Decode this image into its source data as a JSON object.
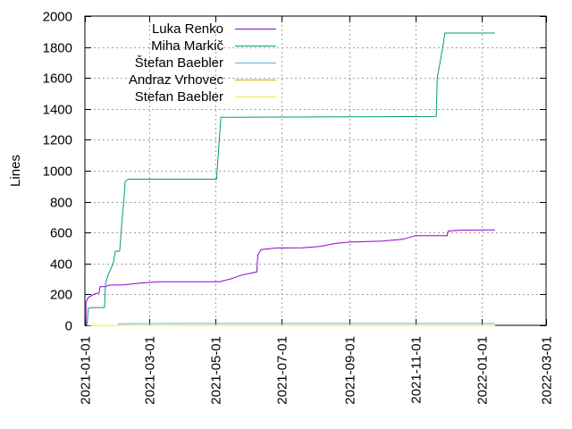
{
  "chart_data": {
    "type": "line",
    "title": "",
    "xlabel": "",
    "ylabel": "Lines",
    "x_type": "date",
    "xlim": [
      "2021-01-01",
      "2022-03-01"
    ],
    "ylim": [
      0,
      2000
    ],
    "x_ticks": [
      "2021-01-01",
      "2021-03-01",
      "2021-05-01",
      "2021-07-01",
      "2021-09-01",
      "2021-11-01",
      "2022-01-01",
      "2022-03-01"
    ],
    "y_ticks": [
      0,
      200,
      400,
      600,
      800,
      1000,
      1200,
      1400,
      1600,
      1800,
      2000
    ],
    "grid": true,
    "legend_position": "top-left",
    "series": [
      {
        "name": "Luka Renko",
        "color": "#9400d3",
        "points": [
          [
            "2021-01-02",
            0
          ],
          [
            "2021-01-02",
            150
          ],
          [
            "2021-01-04",
            180
          ],
          [
            "2021-01-09",
            200
          ],
          [
            "2021-01-14",
            210
          ],
          [
            "2021-01-15",
            250
          ],
          [
            "2021-01-20",
            250
          ],
          [
            "2021-01-23",
            260
          ],
          [
            "2021-02-05",
            262
          ],
          [
            "2021-02-20",
            272
          ],
          [
            "2021-03-10",
            282
          ],
          [
            "2021-05-05",
            282
          ],
          [
            "2021-05-15",
            300
          ],
          [
            "2021-05-25",
            325
          ],
          [
            "2021-06-08",
            345
          ],
          [
            "2021-06-09",
            455
          ],
          [
            "2021-06-12",
            490
          ],
          [
            "2021-06-26",
            500
          ],
          [
            "2021-07-20",
            502
          ],
          [
            "2021-08-05",
            510
          ],
          [
            "2021-08-20",
            530
          ],
          [
            "2021-09-01",
            538
          ],
          [
            "2021-10-01",
            545
          ],
          [
            "2021-10-20",
            556
          ],
          [
            "2021-11-01",
            580
          ],
          [
            "2021-11-30",
            580
          ],
          [
            "2021-12-01",
            610
          ],
          [
            "2021-12-12",
            615
          ],
          [
            "2022-01-01",
            617
          ],
          [
            "2022-01-13",
            617
          ]
        ]
      },
      {
        "name": "Miha Markič",
        "color": "#009e73",
        "points": [
          [
            "2021-01-03",
            0
          ],
          [
            "2021-01-04",
            110
          ],
          [
            "2021-01-08",
            115
          ],
          [
            "2021-01-19",
            115
          ],
          [
            "2021-01-20",
            270
          ],
          [
            "2021-01-22",
            320
          ],
          [
            "2021-01-27",
            400
          ],
          [
            "2021-01-29",
            480
          ],
          [
            "2021-02-02",
            480
          ],
          [
            "2021-02-04",
            670
          ],
          [
            "2021-02-06",
            820
          ],
          [
            "2021-02-07",
            930
          ],
          [
            "2021-02-10",
            945
          ],
          [
            "2021-05-02",
            945
          ],
          [
            "2021-05-06",
            1345
          ],
          [
            "2021-11-20",
            1350
          ],
          [
            "2021-11-21",
            1600
          ],
          [
            "2021-11-26",
            1800
          ],
          [
            "2021-11-28",
            1890
          ],
          [
            "2022-01-13",
            1890
          ]
        ]
      },
      {
        "name": "Štefan Baebler",
        "color": "#56b4e9",
        "points": [
          [
            "2021-01-03",
            0
          ],
          [
            "2021-02-01",
            0
          ],
          [
            "2021-02-01",
            10
          ],
          [
            "2021-04-01",
            12
          ],
          [
            "2022-01-13",
            12
          ]
        ]
      },
      {
        "name": "Andraz Vrhovec",
        "color": "#e69f00",
        "points": [
          [
            "2021-01-03",
            0
          ],
          [
            "2022-01-13",
            0
          ]
        ]
      },
      {
        "name": "Stefan Baebler",
        "color": "#f0e442",
        "points": [
          [
            "2021-01-03",
            0
          ],
          [
            "2022-01-13",
            0
          ]
        ]
      }
    ]
  }
}
